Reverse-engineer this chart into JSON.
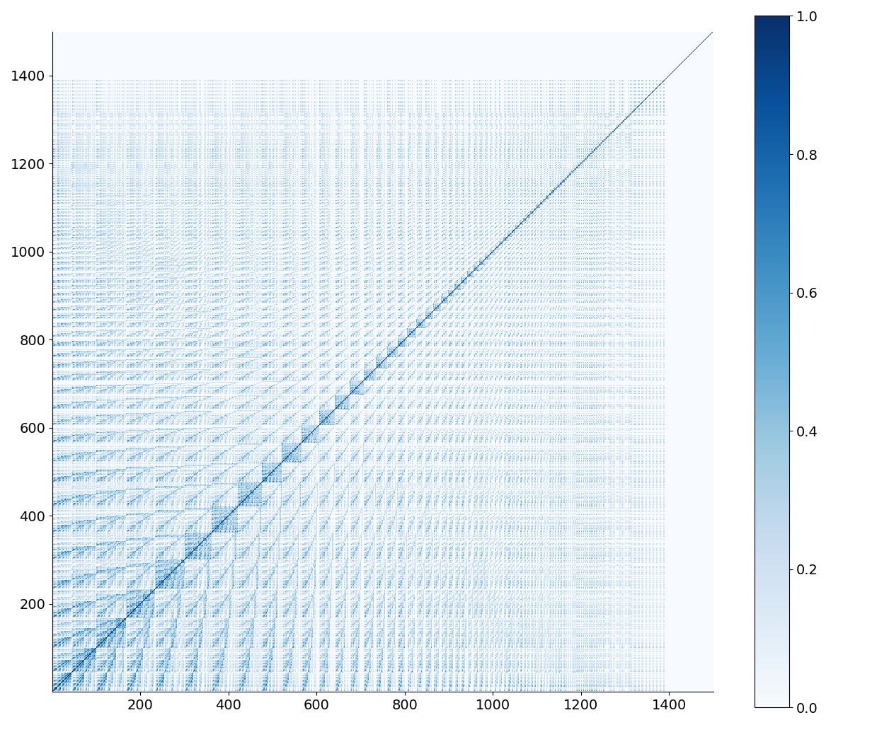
{
  "n": 1500,
  "colormap": "Blues",
  "figsize": [
    12.56,
    10.35
  ],
  "dpi": 100,
  "title": "",
  "xlabel": "",
  "ylabel": "",
  "colorbar_label": "",
  "vmin": 0.0,
  "vmax": 1.0,
  "background_color": "#ffffff",
  "tick_values": [
    200,
    400,
    600,
    800,
    1000,
    1200,
    1400
  ],
  "colorbar_ticks": [
    0.0,
    0.2,
    0.4,
    0.6,
    0.8,
    1.0
  ]
}
